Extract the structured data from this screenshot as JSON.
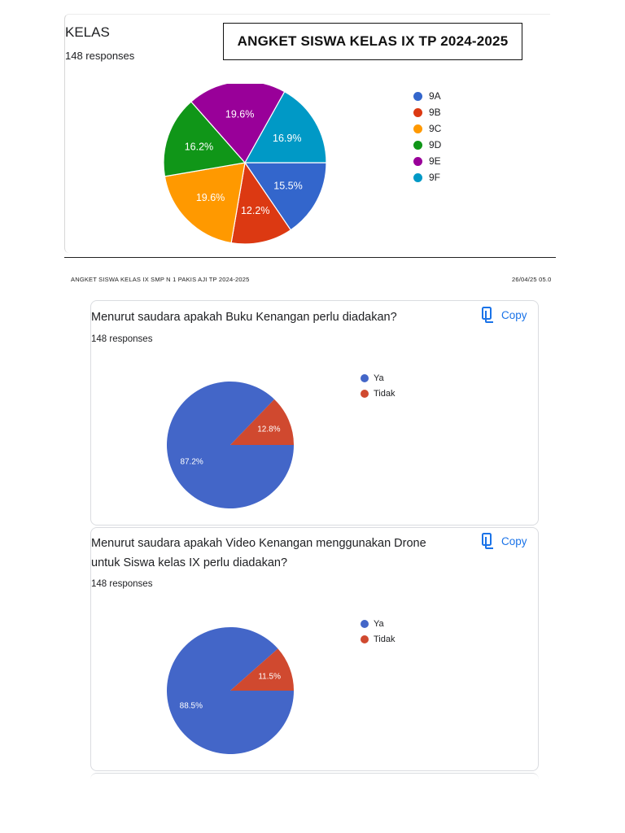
{
  "card1": {
    "title": "KELAS",
    "responses": "148 responses",
    "banner": "ANGKET SISWA KELAS IX TP 2024-2025"
  },
  "page_header": {
    "left": "ANGKET SISWA KELAS IX SMP N 1 PAKIS AJI TP 2024-2025",
    "right": "26/04/25 05.0"
  },
  "q1": {
    "title": "Menurut saudara apakah Buku Kenangan perlu diadakan?",
    "responses": "148 responses",
    "copy_label": "Copy"
  },
  "q2": {
    "title": "Menurut saudara apakah Video Kenangan menggunakan Drone untuk Siswa kelas IX perlu diadakan?",
    "responses": "148 responses",
    "copy_label": "Copy"
  },
  "chart_data": [
    {
      "type": "pie",
      "title": "KELAS",
      "legend_position": "right",
      "slices": [
        {
          "label": "9A",
          "value": 15.5,
          "display": "15.5%",
          "color": "#3366cc"
        },
        {
          "label": "9B",
          "value": 12.2,
          "display": "12.2%",
          "color": "#dc3912"
        },
        {
          "label": "9C",
          "value": 19.6,
          "display": "19.6%",
          "color": "#ff9900"
        },
        {
          "label": "9D",
          "value": 16.2,
          "display": "16.2%",
          "color": "#109618"
        },
        {
          "label": "9E",
          "value": 19.6,
          "display": "19.6%",
          "color": "#990099"
        },
        {
          "label": "9F",
          "value": 16.9,
          "display": "16.9%",
          "color": "#0099c6"
        }
      ]
    },
    {
      "type": "pie",
      "title": "Menurut saudara apakah Buku Kenangan perlu diadakan?",
      "legend_position": "right",
      "slices": [
        {
          "label": "Ya",
          "value": 87.2,
          "display": "87.2%",
          "color": "#4366c8"
        },
        {
          "label": "Tidak",
          "value": 12.8,
          "display": "12.8%",
          "color": "#d0492f"
        }
      ]
    },
    {
      "type": "pie",
      "title": "Menurut saudara apakah Video Kenangan menggunakan Drone untuk Siswa kelas IX perlu diadakan?",
      "legend_position": "right",
      "slices": [
        {
          "label": "Ya",
          "value": 88.5,
          "display": "88.5%",
          "color": "#4366c8"
        },
        {
          "label": "Tidak",
          "value": 11.5,
          "display": "11.5%",
          "color": "#d0492f"
        }
      ]
    }
  ]
}
